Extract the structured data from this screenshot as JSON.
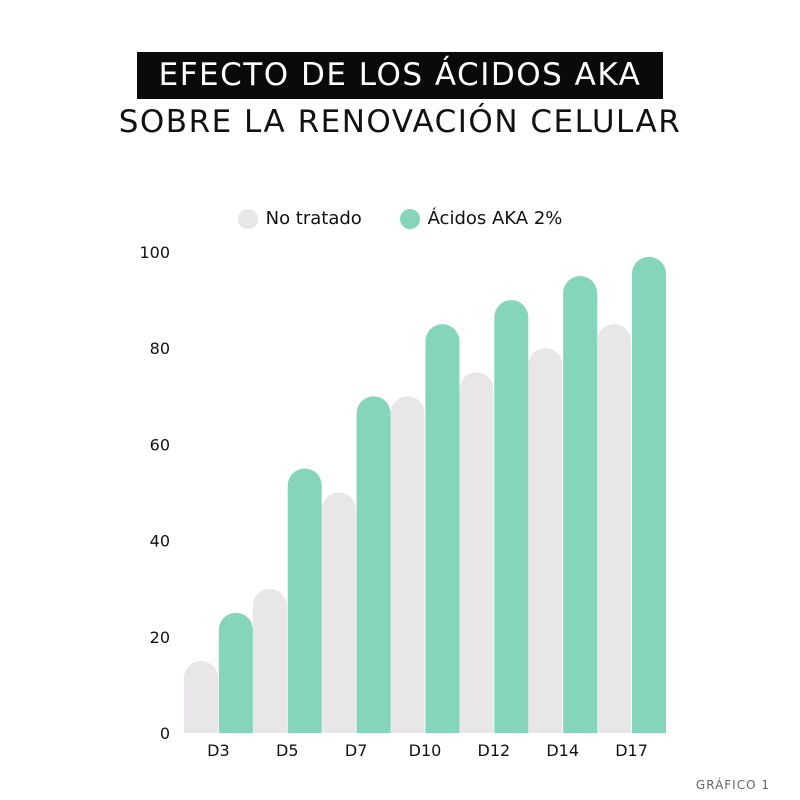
{
  "title": {
    "line1": "EFECTO DE LOS ÁCIDOS AKA",
    "line2": "SOBRE LA RENOVACIÓN CELULAR"
  },
  "footer": "GRÁFICO 1",
  "colors": {
    "no_tratado": "#e8e6e8",
    "acidos": "#85d5bc"
  },
  "chart_data": {
    "type": "bar",
    "categories": [
      "D3",
      "D5",
      "D7",
      "D10",
      "D12",
      "D14",
      "D17"
    ],
    "series": [
      {
        "name": "No tratado",
        "values": [
          15,
          30,
          50,
          70,
          75,
          80,
          85
        ]
      },
      {
        "name": "Ácidos AKA 2%",
        "values": [
          25,
          55,
          70,
          85,
          90,
          95,
          99
        ]
      }
    ],
    "yticks": [
      0,
      20,
      40,
      60,
      80,
      100
    ],
    "ylim": [
      0,
      100
    ],
    "grid": false,
    "legend_position": "top"
  }
}
